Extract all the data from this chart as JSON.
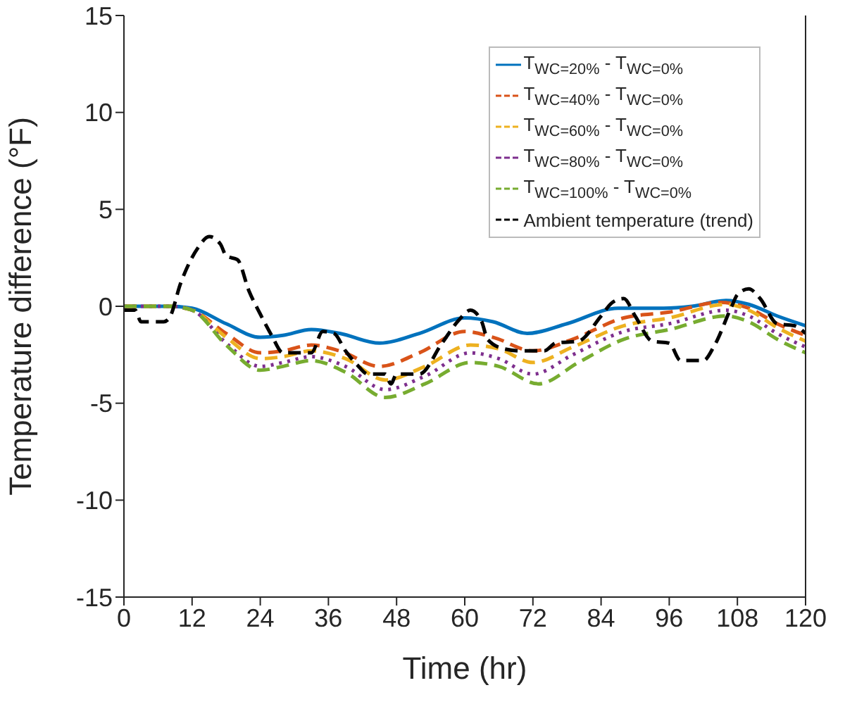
{
  "chart_data": {
    "type": "line",
    "xlabel": "Time (hr)",
    "ylabel": "Temperature difference (°F)",
    "xlim": [
      0,
      120
    ],
    "xticks": [
      0,
      12,
      24,
      36,
      48,
      60,
      72,
      84,
      96,
      108,
      120
    ],
    "ylim": [
      -15,
      15
    ],
    "yticks": [
      -15,
      -10,
      -5,
      0,
      5,
      10,
      15
    ],
    "legend": "top right",
    "series": [
      {
        "name": "T$_{WC=20%}$ - T$_{WC=0%}$",
        "color": "#0072bd",
        "line_style": "solid",
        "x": [
          0,
          8,
          12,
          18,
          24,
          28,
          33,
          38,
          45,
          52,
          60,
          65,
          71,
          78,
          87,
          95,
          100,
          106,
          110,
          115,
          120
        ],
        "values": [
          0,
          0,
          -0.1,
          -0.9,
          -1.6,
          -1.5,
          -1.2,
          -1.4,
          -1.9,
          -1.4,
          -0.6,
          -0.8,
          -1.4,
          -0.9,
          -0.1,
          -0.1,
          0,
          0.3,
          0.1,
          -0.5,
          -1.0
        ]
      },
      {
        "name": "T$_{WC=40%}$ - T$_{WC=0%}$",
        "color": "#d95319",
        "line_style": "dashed",
        "x": [
          0,
          8,
          12,
          18,
          24,
          28,
          33,
          38,
          45,
          52,
          60,
          65,
          72,
          79,
          88,
          96,
          105,
          110,
          115,
          120
        ],
        "values": [
          0,
          0,
          -0.2,
          -1.4,
          -2.4,
          -2.3,
          -2.0,
          -2.3,
          -3.1,
          -2.4,
          -1.3,
          -1.6,
          -2.3,
          -1.7,
          -0.6,
          -0.3,
          0.2,
          -0.1,
          -0.9,
          -1.5
        ]
      },
      {
        "name": "T$_{WC=60%}$ - T$_{WC=0%}$",
        "color": "#edb120",
        "line_style": "dashed",
        "x": [
          0,
          8,
          12,
          18,
          24,
          28,
          33,
          39,
          46,
          53,
          61,
          66,
          72,
          79,
          88,
          96,
          106,
          110,
          115,
          120
        ],
        "values": [
          0,
          0,
          -0.2,
          -1.6,
          -2.7,
          -2.6,
          -2.3,
          -2.7,
          -3.8,
          -3.1,
          -2.0,
          -2.2,
          -2.9,
          -2.1,
          -1.0,
          -0.6,
          0.1,
          -0.2,
          -1.1,
          -1.8
        ]
      },
      {
        "name": "T$_{WC=80%}$ - T$_{WC=0%}$",
        "color": "#7e2f8e",
        "line_style": "dotted",
        "x": [
          0,
          8,
          12,
          18,
          24,
          28,
          33,
          39,
          46,
          53,
          61,
          66,
          72,
          79,
          88,
          96,
          106,
          110,
          115,
          120
        ],
        "values": [
          0,
          0,
          -0.2,
          -1.9,
          -3.1,
          -2.9,
          -2.6,
          -3.1,
          -4.3,
          -3.6,
          -2.4,
          -2.7,
          -3.5,
          -2.5,
          -1.3,
          -0.9,
          -0.2,
          -0.5,
          -1.4,
          -2.1
        ]
      },
      {
        "name": "T$_{WC=100%}$ - T$_{WC=0%}$",
        "color": "#77ac30",
        "line_style": "dashed",
        "x": [
          0,
          8,
          12,
          18,
          24,
          28,
          33,
          39,
          46,
          53,
          61,
          66,
          73,
          80,
          88,
          96,
          106,
          110,
          115,
          120
        ],
        "values": [
          0,
          0,
          -0.2,
          -2.0,
          -3.3,
          -3.1,
          -2.8,
          -3.4,
          -4.7,
          -4.0,
          -2.9,
          -3.1,
          -4.0,
          -2.9,
          -1.7,
          -1.2,
          -0.5,
          -0.8,
          -1.7,
          -2.4
        ]
      },
      {
        "name": "Ambient temperature (trend)",
        "color": "#000000",
        "line_style": "dashed",
        "x": [
          0,
          2,
          3,
          7,
          8,
          10,
          13,
          15,
          17,
          18,
          20,
          22,
          24,
          26,
          28,
          33,
          35,
          37,
          39,
          41,
          43,
          46,
          47,
          48,
          52,
          56,
          59,
          61,
          63,
          64,
          67,
          70,
          74,
          76,
          80,
          84,
          86,
          88,
          90,
          93,
          96,
          98,
          102,
          104,
          107,
          108,
          110,
          112,
          115,
          118,
          120
        ],
        "values": [
          -0.2,
          -0.2,
          -0.8,
          -0.8,
          -0.6,
          1.2,
          3.0,
          3.6,
          3.2,
          2.6,
          2.4,
          0.8,
          -0.4,
          -1.5,
          -2.4,
          -2.4,
          -1.3,
          -1.4,
          -2.3,
          -3.0,
          -3.5,
          -3.5,
          -4.0,
          -3.5,
          -3.5,
          -1.9,
          -0.7,
          -0.2,
          -0.8,
          -1.7,
          -2.2,
          -2.3,
          -2.3,
          -1.9,
          -1.8,
          -0.5,
          0.2,
          0.4,
          -0.5,
          -1.8,
          -1.9,
          -2.8,
          -2.8,
          -2.0,
          0.0,
          0.6,
          0.9,
          0.4,
          -0.9,
          -1.0,
          -1.4
        ]
      }
    ]
  }
}
